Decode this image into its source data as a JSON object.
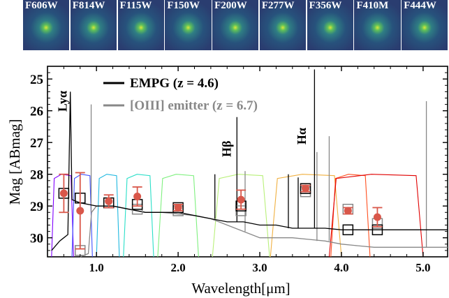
{
  "stamps": [
    "F606W",
    "F814W",
    "F115W",
    "F150W",
    "F200W",
    "F277W",
    "F356W",
    "F410M",
    "F444W"
  ],
  "chart_data": {
    "type": "line",
    "xlabel": "Wavelength[μm]",
    "ylabel": "Mag [ABmag]",
    "xlim": [
      0.4,
      5.3
    ],
    "ylim": [
      30.6,
      24.6
    ],
    "xticks": [
      "1.0",
      "2.0",
      "3.0",
      "4.0",
      "5.0"
    ],
    "xtick_values": [
      1.0,
      2.0,
      3.0,
      4.0,
      5.0
    ],
    "yticks": [
      "25",
      "26",
      "27",
      "28",
      "29",
      "30"
    ],
    "ytick_values": [
      25,
      26,
      27,
      28,
      29,
      30
    ],
    "legend": [
      {
        "label": "EMPG (z = 4.6)",
        "color": "#000000"
      },
      {
        "label": "[OIII] emitter (z = 6.7)",
        "color": "#888888"
      }
    ],
    "annotations": [
      {
        "text": "Lyα",
        "x": 0.67,
        "y": 25.7
      },
      {
        "text": "Hβ",
        "x": 2.68,
        "y": 27.2
      },
      {
        "text": "Hα",
        "x": 3.6,
        "y": 26.8
      }
    ],
    "series": [
      {
        "name": "EMPG (z = 4.6)",
        "color": "#000000",
        "x": [
          0.45,
          0.55,
          0.6,
          0.65,
          0.68,
          0.7,
          0.8,
          1.0,
          1.2,
          1.4,
          1.6,
          1.8,
          2.0,
          2.2,
          2.4,
          2.6,
          2.8,
          3.0,
          3.2,
          3.4,
          3.6,
          3.8,
          4.0,
          4.2,
          4.4,
          4.6,
          4.8,
          5.0,
          5.3
        ],
        "y": [
          30.4,
          30.1,
          30.0,
          29.9,
          25.4,
          28.8,
          28.9,
          29.0,
          29.0,
          29.1,
          29.2,
          29.2,
          29.2,
          29.3,
          29.4,
          29.5,
          29.5,
          29.6,
          29.6,
          29.7,
          29.7,
          29.7,
          29.75,
          29.75,
          29.75,
          29.75,
          29.75,
          29.75,
          29.75
        ],
        "lines": [
          {
            "x": 2.72,
            "peak": 26.2,
            "label": "Hβ"
          },
          {
            "x": 3.67,
            "peak": 24.7,
            "label": "Hα"
          },
          {
            "x": 2.45,
            "peak": 28.0
          },
          {
            "x": 3.35,
            "peak": 28.0
          },
          {
            "x": 3.47,
            "peak": 28.1
          }
        ]
      },
      {
        "name": "[OIII] emitter (z = 6.7)",
        "color": "#888888",
        "x": [
          0.8,
          0.9,
          0.94,
          1.0,
          1.2,
          1.4,
          1.6,
          1.8,
          2.0,
          2.2,
          2.4,
          2.6,
          2.8,
          3.0,
          3.2,
          3.4,
          3.6,
          3.8,
          4.0,
          4.2,
          4.4,
          4.6,
          4.8,
          5.0,
          5.3
        ],
        "y": [
          30.6,
          30.5,
          29.2,
          29.0,
          29.0,
          29.1,
          29.2,
          29.2,
          29.25,
          29.3,
          29.4,
          29.6,
          29.8,
          30.0,
          30.0,
          30.0,
          30.05,
          30.1,
          30.2,
          30.25,
          30.3,
          30.3,
          30.3,
          30.3,
          30.3
        ],
        "lines": [
          {
            "x": 0.935,
            "peak": 25.8
          },
          {
            "x": 2.82,
            "peak": 27.9
          },
          {
            "x": 3.7,
            "peak": 27.3
          },
          {
            "x": 3.85,
            "peak": 26.8
          },
          {
            "x": 5.04,
            "peak": 25.7
          }
        ]
      }
    ],
    "filters": [
      {
        "name": "F606W",
        "color": "#7f00ff",
        "x": [
          0.45,
          0.72
        ]
      },
      {
        "name": "F814W",
        "color": "#3f4fff",
        "x": [
          0.7,
          0.95
        ]
      },
      {
        "name": "F115W",
        "color": "#1fb8e0",
        "x": [
          1.0,
          1.28
        ]
      },
      {
        "name": "F150W",
        "color": "#2adfc8",
        "x": [
          1.33,
          1.7
        ]
      },
      {
        "name": "F200W",
        "color": "#7ff07f",
        "x": [
          1.75,
          2.25
        ]
      },
      {
        "name": "F277W",
        "color": "#b9f07a",
        "x": [
          2.42,
          3.12
        ]
      },
      {
        "name": "F356W",
        "color": "#f0b040",
        "x": [
          3.13,
          4.0
        ]
      },
      {
        "name": "F410M",
        "color": "#ff5020",
        "x": [
          3.87,
          4.35
        ]
      },
      {
        "name": "F444W",
        "color": "#e00000",
        "x": [
          3.85,
          5.0
        ]
      }
    ],
    "points": [
      {
        "x": 0.6,
        "mag": 28.6,
        "err": 0.6
      },
      {
        "x": 0.8,
        "mag": 29.15,
        "err": 1.2
      },
      {
        "x": 1.15,
        "mag": 28.85,
        "err": 0.2
      },
      {
        "x": 1.5,
        "mag": 28.7,
        "err": 0.3
      },
      {
        "x": 2.0,
        "mag": 29.05,
        "err": 0.1
      },
      {
        "x": 2.77,
        "mag": 28.8,
        "err": 0.3
      },
      {
        "x": 3.56,
        "mag": 28.45,
        "err": 0.1
      },
      {
        "x": 4.08,
        "mag": 29.15,
        "err": 0.1
      },
      {
        "x": 4.44,
        "mag": 29.35,
        "err": 0.3
      }
    ],
    "model_boxes_black": [
      {
        "x": 0.6,
        "mag": 28.6
      },
      {
        "x": 0.8,
        "mag": 28.75
      },
      {
        "x": 1.15,
        "mag": 28.9
      },
      {
        "x": 1.5,
        "mag": 28.95
      },
      {
        "x": 2.0,
        "mag": 29.05
      },
      {
        "x": 2.77,
        "mag": 29.0
      },
      {
        "x": 3.56,
        "mag": 28.45
      },
      {
        "x": 4.08,
        "mag": 29.75
      },
      {
        "x": 4.44,
        "mag": 29.75
      }
    ],
    "model_boxes_gray": [
      {
        "x": 0.8,
        "mag": 30.4
      },
      {
        "x": 1.15,
        "mag": 28.9
      },
      {
        "x": 1.5,
        "mag": 29.1
      },
      {
        "x": 2.0,
        "mag": 29.15
      },
      {
        "x": 2.77,
        "mag": 29.15
      },
      {
        "x": 3.56,
        "mag": 28.55
      },
      {
        "x": 4.08,
        "mag": 29.1
      },
      {
        "x": 4.44,
        "mag": 29.55
      }
    ]
  }
}
